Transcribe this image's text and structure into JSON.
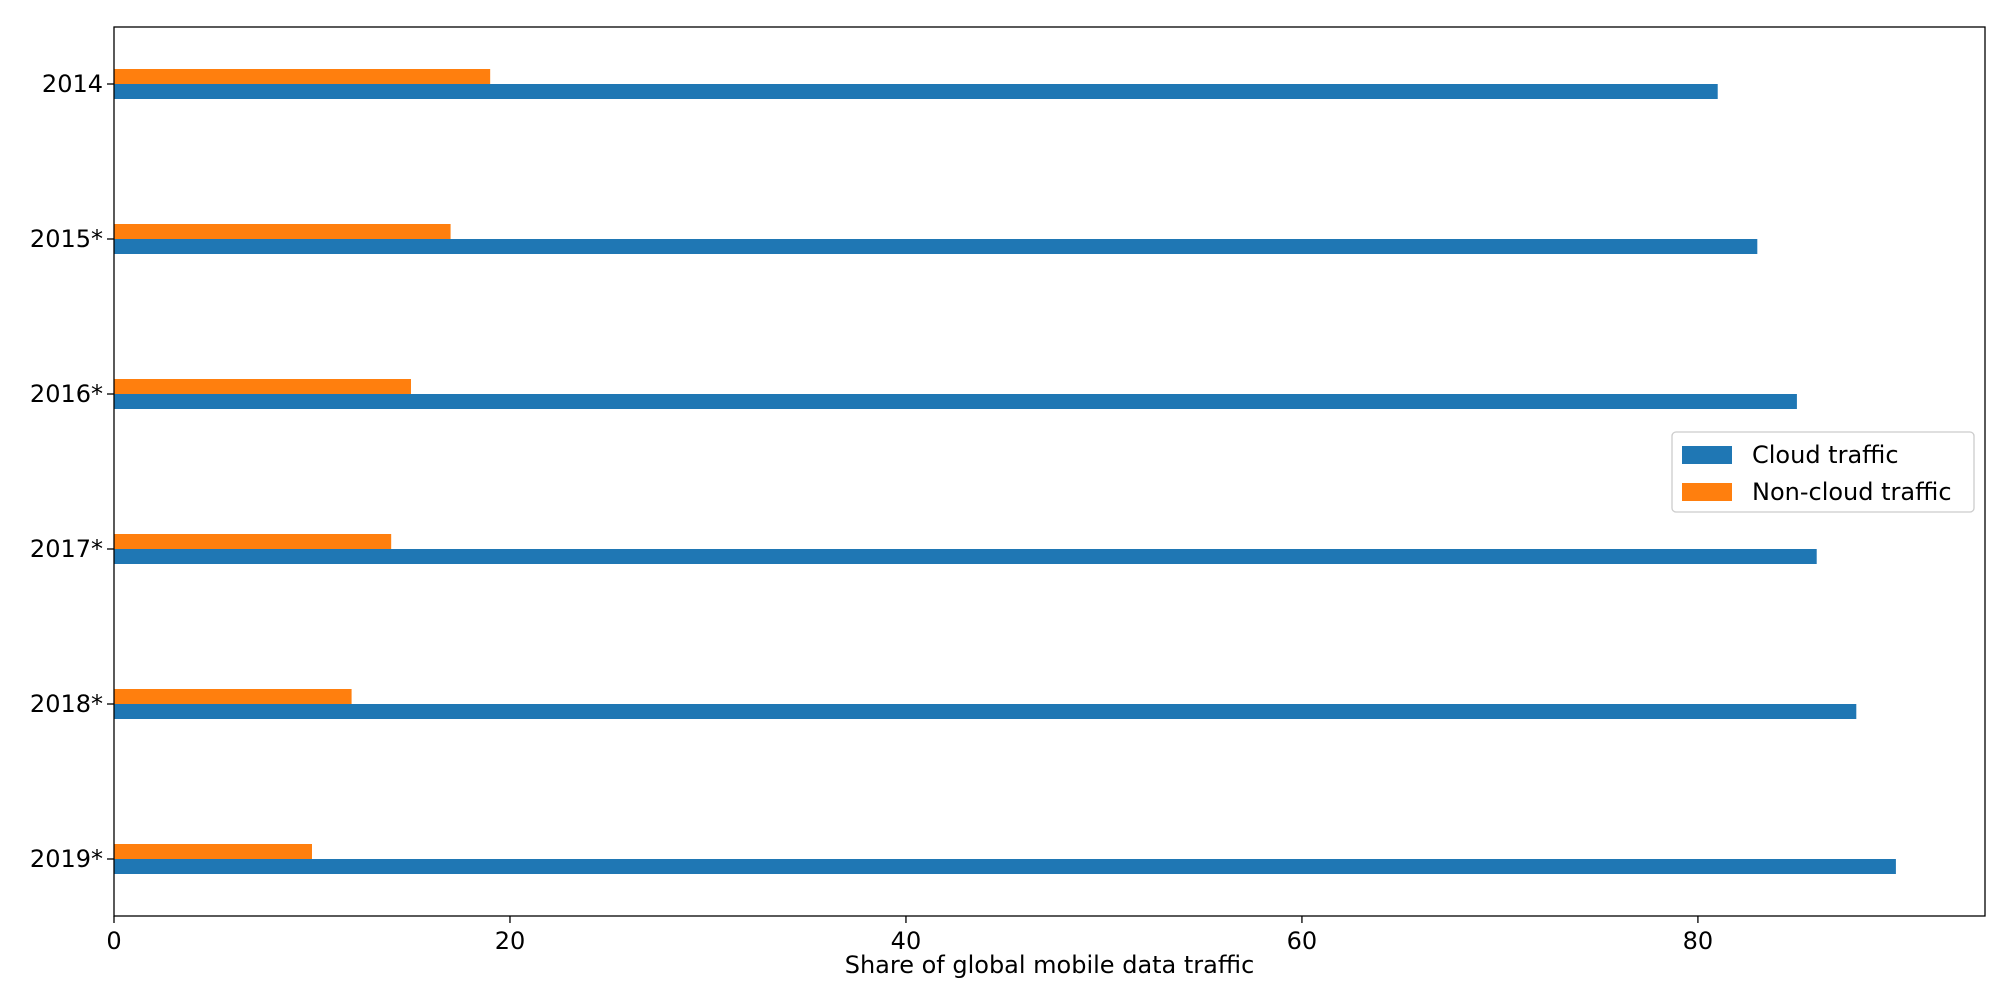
{
  "chart_data": {
    "type": "bar",
    "orientation": "horizontal",
    "categories": [
      "2014",
      "2015*",
      "2016*",
      "2017*",
      "2018*",
      "2019*"
    ],
    "series": [
      {
        "name": "Cloud traffic",
        "values": [
          81,
          83,
          85,
          86,
          88,
          90
        ],
        "color": "#1f77b4"
      },
      {
        "name": "Non-cloud traffic",
        "values": [
          19,
          17,
          15,
          14,
          12,
          10
        ],
        "color": "#ff7f0e"
      }
    ],
    "title": "",
    "xlabel": "Share of global mobile data traffic",
    "ylabel": "",
    "xlim": [
      0,
      94.5
    ],
    "xticks": [
      0,
      20,
      40,
      60,
      80
    ],
    "grid": false,
    "legend": "center-right"
  }
}
